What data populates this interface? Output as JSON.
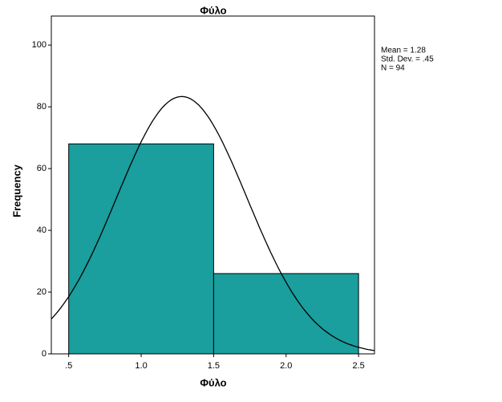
{
  "chart_data": {
    "type": "histogram",
    "title": "Φύλο",
    "x_label": "Φύλο",
    "y_label": "Frequency",
    "bins": [
      0.5,
      1.5,
      2.5
    ],
    "values": [
      68,
      26
    ],
    "color": "#1a9e9e",
    "xlim": [
      0.38,
      2.61
    ],
    "xticks": [
      {
        "value": 0.5,
        "label": ".5"
      },
      {
        "value": 1.0,
        "label": "1.0"
      },
      {
        "value": 1.5,
        "label": "1.5"
      },
      {
        "value": 2.0,
        "label": "2.0"
      },
      {
        "value": 2.5,
        "label": "2.5"
      }
    ],
    "ylim": [
      0,
      109.4
    ],
    "yticks": [
      0,
      20,
      40,
      60,
      80,
      100
    ],
    "stats": [
      {
        "label": "Mean = 1.28",
        "value": 1.28
      },
      {
        "label": "Std. Dev. = .45",
        "value": 0.45
      },
      {
        "label": "N = 94",
        "value": 94
      }
    ]
  }
}
